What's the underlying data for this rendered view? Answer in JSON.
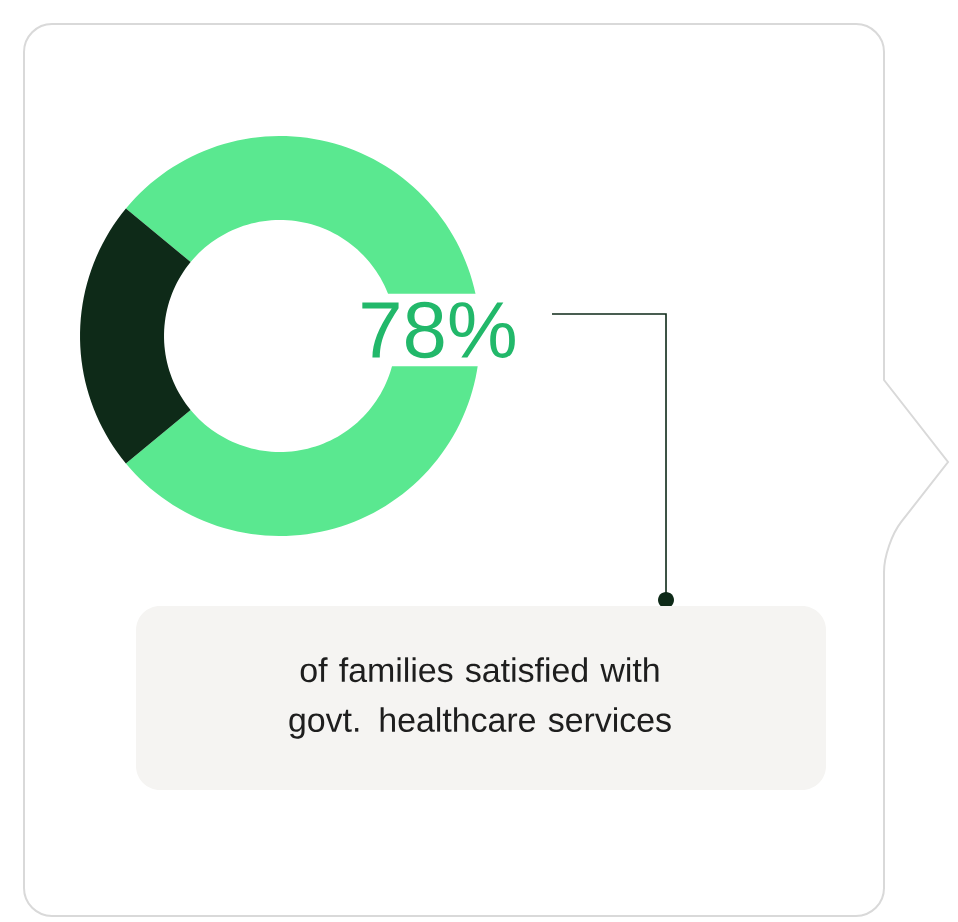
{
  "chart_data": {
    "type": "donut",
    "categories": [
      null,
      null
    ],
    "values": [
      78,
      22
    ],
    "colors": [
      "#5ae890",
      "#0e2a18"
    ],
    "value_labels": [
      "78%",
      null
    ],
    "annotations": [
      "of families satisfied with govt. healthcare services"
    ]
  }
}
